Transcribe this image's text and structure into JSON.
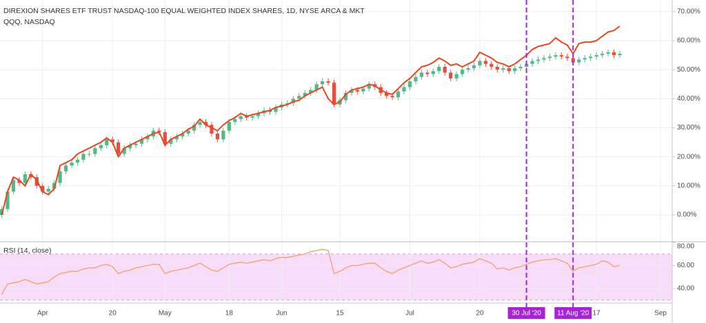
{
  "chart_data": [
    {
      "type": "candlestick",
      "title": "DIREXION SHARES ETF TRUST NASDAQ-100 EQUAL WEIGHTED INDEX SHARES, 1D, NYSE ARCA & MKT",
      "open": [
        0,
        2,
        8,
        12,
        11,
        14,
        13,
        10,
        8,
        9,
        11,
        15,
        17,
        18,
        19,
        21,
        21,
        23,
        24,
        26,
        25,
        21,
        23,
        24,
        24.5,
        26,
        27,
        29,
        28.5,
        24.5,
        26,
        27,
        28,
        29,
        31,
        32,
        31,
        28,
        26,
        29,
        32,
        33,
        34,
        33.5,
        34,
        35,
        36,
        35.5,
        37,
        38,
        38.5,
        40,
        41,
        42,
        43,
        45,
        46,
        45.5,
        38,
        39.5,
        42,
        43,
        42.5,
        43.5,
        45,
        44,
        42,
        41,
        40.5,
        42.5,
        44,
        46,
        47.5,
        49,
        48.5,
        49.5,
        51,
        49,
        47,
        48.5,
        50,
        50.5,
        51.5,
        53,
        52,
        51,
        50,
        50.5,
        49.5,
        50.5,
        51,
        52,
        53,
        53.5,
        54,
        54.5,
        55,
        54.5,
        54,
        52.5,
        53.5,
        54,
        54.5,
        55,
        55.5,
        56,
        55
      ],
      "high": [
        3,
        9,
        13,
        13,
        15,
        15,
        14,
        11,
        10,
        12,
        16,
        18,
        19,
        20,
        22,
        22,
        24,
        25,
        27,
        27,
        26,
        24,
        25,
        25.5,
        27,
        28,
        30,
        30,
        29.5,
        27,
        28,
        29,
        30,
        32,
        33,
        33,
        32,
        29,
        30,
        33,
        34,
        35,
        35,
        35,
        36,
        37,
        37,
        38,
        39,
        39.5,
        41,
        42,
        43,
        44,
        46,
        47,
        47,
        46.5,
        40.5,
        43,
        44,
        44,
        44.5,
        46,
        46,
        45,
        43,
        42,
        43.5,
        45,
        47,
        48.5,
        50,
        50,
        50.5,
        52,
        52,
        50,
        49.5,
        51,
        51.5,
        52.5,
        54,
        54,
        53,
        52,
        51.5,
        51.5,
        51.5,
        52,
        53,
        54,
        54.5,
        55,
        55.5,
        56,
        56,
        55.5,
        55,
        54.5,
        55,
        55.5,
        56,
        56.5,
        57,
        57,
        56.5
      ],
      "low": [
        -1,
        1,
        7,
        10,
        10,
        12,
        9,
        7,
        7,
        8,
        10,
        14,
        16,
        17,
        18,
        20,
        20,
        22,
        23,
        24,
        20,
        20,
        22,
        23,
        23.5,
        25,
        26,
        27.5,
        23.5,
        23.5,
        25,
        26,
        27,
        28,
        30,
        30,
        27,
        25,
        25,
        28,
        31,
        32,
        32.5,
        32.5,
        33,
        34,
        34.5,
        34.5,
        36,
        37,
        37.5,
        39,
        40,
        41,
        42,
        44,
        44.5,
        37,
        37,
        38.5,
        41,
        41.5,
        41.5,
        42.5,
        43,
        41,
        40,
        39.5,
        39.5,
        41.5,
        43,
        45,
        46.5,
        47.5,
        47.5,
        48.5,
        48,
        46,
        46,
        47.5,
        49,
        49.5,
        50.5,
        51,
        50,
        49,
        49,
        48.5,
        48.5,
        49.5,
        50,
        51,
        52,
        52.5,
        53,
        53.5,
        53.5,
        53,
        51.5,
        51.5,
        52.5,
        53,
        53.5,
        54,
        54.5,
        54,
        54
      ],
      "close": [
        2,
        8,
        12,
        11,
        14,
        13,
        10,
        8,
        9,
        11,
        15,
        17,
        18,
        19,
        21,
        21,
        23,
        24,
        26,
        25,
        21,
        23,
        24,
        24.5,
        26,
        27,
        29,
        28.5,
        24.5,
        26,
        27,
        28,
        29,
        31,
        32,
        31,
        28,
        26,
        29,
        32,
        33,
        34,
        33.5,
        34,
        35,
        36,
        35.5,
        37,
        38,
        38.5,
        40,
        41,
        42,
        43,
        45,
        46,
        45.5,
        38,
        39.5,
        42,
        43,
        42.5,
        43.5,
        45,
        44,
        42,
        41,
        40.5,
        42.5,
        44,
        46,
        47.5,
        49,
        48.5,
        49.5,
        51,
        49,
        47,
        48.5,
        50,
        50.5,
        51.5,
        53,
        52,
        51,
        50,
        50.5,
        49.5,
        50.5,
        51,
        52,
        53,
        53.5,
        54,
        54.5,
        55,
        54.5,
        54,
        52.5,
        53.5,
        54,
        54.5,
        55,
        55.5,
        56,
        55,
        55.5
      ],
      "up_color": "#53b987",
      "down_color": "#eb4d3d",
      "series": [
        {
          "name": "QQQ, NASDAQ",
          "color": "#e8461e",
          "values": [
            0,
            8,
            13,
            12,
            10,
            14,
            12,
            8,
            7,
            9,
            17,
            18,
            19,
            21,
            22,
            23,
            24,
            25,
            26.5,
            25,
            20,
            23,
            24,
            25,
            26,
            27,
            28,
            28.5,
            24,
            26,
            27,
            28,
            29.5,
            30.5,
            33,
            31,
            30,
            29,
            31,
            32.5,
            33.5,
            35,
            34,
            34.5,
            35,
            35.5,
            36,
            37,
            37.5,
            38,
            39,
            39.5,
            41,
            42,
            43,
            44,
            40,
            38,
            39,
            41.5,
            43,
            43.5,
            44,
            45,
            44.5,
            43,
            42,
            41.5,
            43.5,
            45.5,
            47,
            49,
            51,
            51.5,
            52.5,
            54,
            53,
            51.5,
            52,
            51,
            52,
            53,
            56,
            55,
            54,
            52.5,
            52,
            51,
            52,
            53.5,
            55,
            57,
            58,
            58.5,
            59,
            61,
            59.5,
            58.5,
            55.5,
            59,
            59.5,
            59.5,
            60,
            61.5,
            63,
            63.5,
            65
          ]
        }
      ],
      "xlim": [
        -0.3,
        115
      ],
      "xticks": [
        {
          "value": 7,
          "label": "Apr"
        },
        {
          "value": 19,
          "label": "20"
        },
        {
          "value": 28,
          "label": "May"
        },
        {
          "value": 39,
          "label": "18"
        },
        {
          "value": 48,
          "label": "Jun"
        },
        {
          "value": 58,
          "label": "15"
        },
        {
          "value": 70,
          "label": "Jul"
        },
        {
          "value": 82,
          "label": "20"
        },
        {
          "value": 102,
          "label": "17"
        },
        {
          "value": 113,
          "label": "Sep"
        }
      ],
      "markers": [
        {
          "x": 90,
          "label": "30 Jul '20"
        },
        {
          "x": 98,
          "label": "11 Aug '20"
        }
      ],
      "marker_color": "#a524d8",
      "ylim": [
        -9,
        74
      ],
      "yticks": [
        {
          "value": 70,
          "label": "70.00%"
        },
        {
          "value": 60,
          "label": "60.00%"
        },
        {
          "value": 50,
          "label": "50.00%"
        },
        {
          "value": 40,
          "label": "40.00%"
        },
        {
          "value": 30,
          "label": "30.00%"
        },
        {
          "value": 20,
          "label": "20.00%"
        },
        {
          "value": 10,
          "label": "10.00%"
        },
        {
          "value": 0,
          "label": "0.00%"
        }
      ],
      "grid": true
    },
    {
      "type": "line",
      "title": "RSI (14, close)",
      "values": [
        35,
        44,
        45,
        46,
        48,
        46,
        44,
        45,
        46,
        50,
        53,
        54,
        55,
        55,
        57,
        58,
        58,
        60,
        61,
        59,
        53,
        55,
        56,
        58,
        59,
        60,
        61,
        61,
        53,
        55,
        56,
        57,
        58,
        60,
        62,
        59,
        56,
        55,
        58,
        61,
        62,
        63,
        62,
        63,
        64,
        65,
        64,
        66,
        67,
        67,
        68,
        69,
        70,
        72,
        73,
        74,
        73,
        53,
        55,
        58,
        60,
        60,
        61,
        62,
        62,
        58,
        55,
        53,
        56,
        58,
        60,
        62,
        64,
        62,
        63,
        65,
        62,
        58,
        59,
        61,
        62,
        63,
        66,
        64,
        62,
        57,
        58,
        56,
        58,
        59,
        61,
        63,
        64,
        65,
        65,
        66,
        64,
        62,
        55,
        58,
        59,
        60,
        61,
        64,
        63,
        59,
        60
      ],
      "color": "#f3a05f",
      "band": [
        30,
        70
      ],
      "band_color": "#f7ddf9",
      "ylim": [
        27.5,
        80
      ],
      "yticks": [
        {
          "value": 80,
          "label": "80.00"
        },
        {
          "value": 60,
          "label": "60.00"
        },
        {
          "value": 40,
          "label": "40.00"
        }
      ],
      "grid": true
    }
  ]
}
